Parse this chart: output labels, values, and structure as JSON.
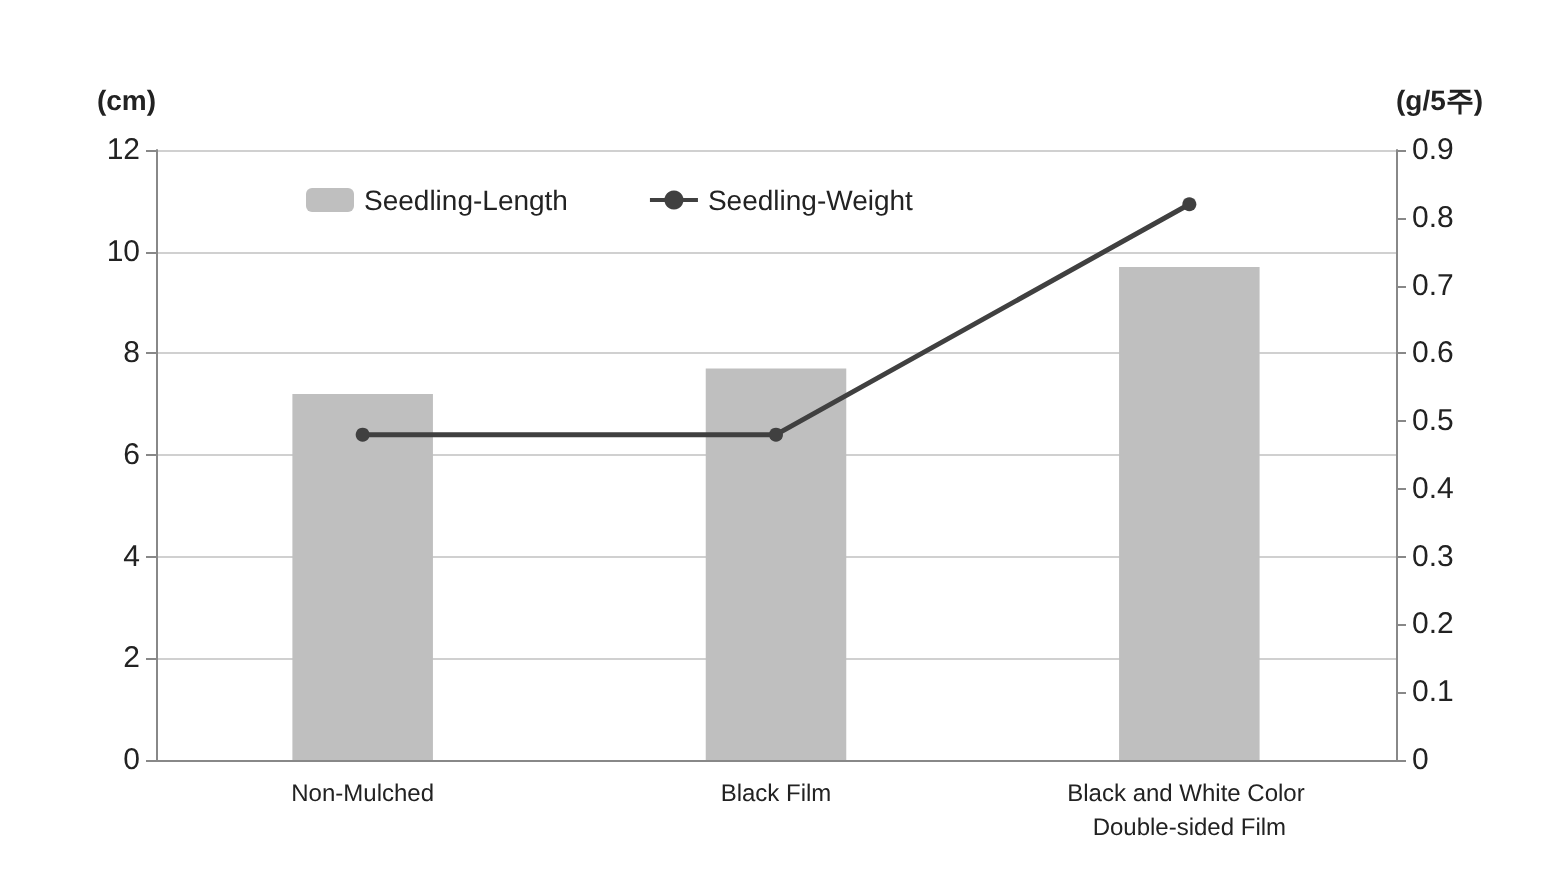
{
  "chart_data": {
    "type": "bar",
    "ylabel": "(cm)",
    "y2label": "(g/5주)",
    "categories": [
      "Non-Mulched",
      "Black Film",
      "Black and White Color Double-sided Film"
    ],
    "series": [
      {
        "name": "Seedling-Length",
        "color": "#bfbfbf",
        "values": [
          7.2,
          7.7,
          9.7
        ]
      },
      {
        "name": "Seedling-Weight",
        "type": "line",
        "axis": "y2",
        "color": "#404040",
        "values": [
          0.48,
          0.48,
          0.82
        ]
      }
    ],
    "ylim": [
      0,
      12
    ],
    "yticks": [
      0,
      2,
      4,
      6,
      8,
      10,
      12
    ],
    "y2lim": [
      0,
      0.9
    ],
    "y2ticks": [
      0,
      0.1,
      0.2,
      0.3,
      0.4,
      0.5,
      0.6,
      0.7,
      0.8,
      0.9
    ],
    "grid": "y",
    "legend": "top left",
    "marker": "circle",
    "line_style": "solid"
  }
}
